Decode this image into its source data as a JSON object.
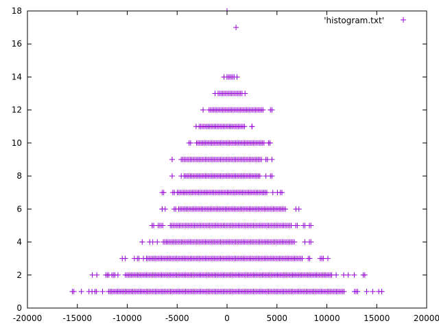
{
  "chart_data": {
    "type": "scatter",
    "title": "",
    "xlabel": "",
    "ylabel": "",
    "xlim": [
      -20000,
      20000
    ],
    "ylim": [
      0,
      18
    ],
    "x_ticks": [
      -20000,
      -15000,
      -10000,
      -5000,
      0,
      5000,
      10000,
      15000,
      20000
    ],
    "y_ticks": [
      0,
      2,
      4,
      6,
      8,
      10,
      12,
      14,
      16,
      18
    ],
    "grid": false,
    "legend_position": "top-right",
    "marker": "+",
    "color": "#9400d3",
    "series": [
      {
        "name": "'histogram.txt'",
        "points_are_sampled": true,
        "band_extents": [
          {
            "y": 1,
            "x_min": -15500,
            "x_max": 15500
          },
          {
            "y": 2,
            "x_min": -13500,
            "x_max": 13800
          },
          {
            "y": 3,
            "x_min": -10500,
            "x_max": 10100
          },
          {
            "y": 4,
            "x_min": -8500,
            "x_max": 8400
          },
          {
            "y": 5,
            "x_min": -7500,
            "x_max": 8400
          },
          {
            "y": 6,
            "x_min": -6500,
            "x_max": 7200
          },
          {
            "y": 7,
            "x_min": -6500,
            "x_max": 5500
          },
          {
            "y": 8,
            "x_min": -5500,
            "x_max": 4500
          },
          {
            "y": 9,
            "x_min": -5500,
            "x_max": 4500
          },
          {
            "y": 10,
            "x_min": -3800,
            "x_max": 4300
          },
          {
            "y": 11,
            "x_min": -3100,
            "x_max": 2500
          },
          {
            "y": 12,
            "x_min": -2400,
            "x_max": 4500
          },
          {
            "y": 13,
            "x_min": -1200,
            "x_max": 1800
          },
          {
            "y": 14,
            "x_min": -300,
            "x_max": 1000
          },
          {
            "y": 17,
            "x_min": 900,
            "x_max": 900
          },
          {
            "y": 18,
            "x_min": 0,
            "x_max": 0
          }
        ]
      }
    ]
  }
}
